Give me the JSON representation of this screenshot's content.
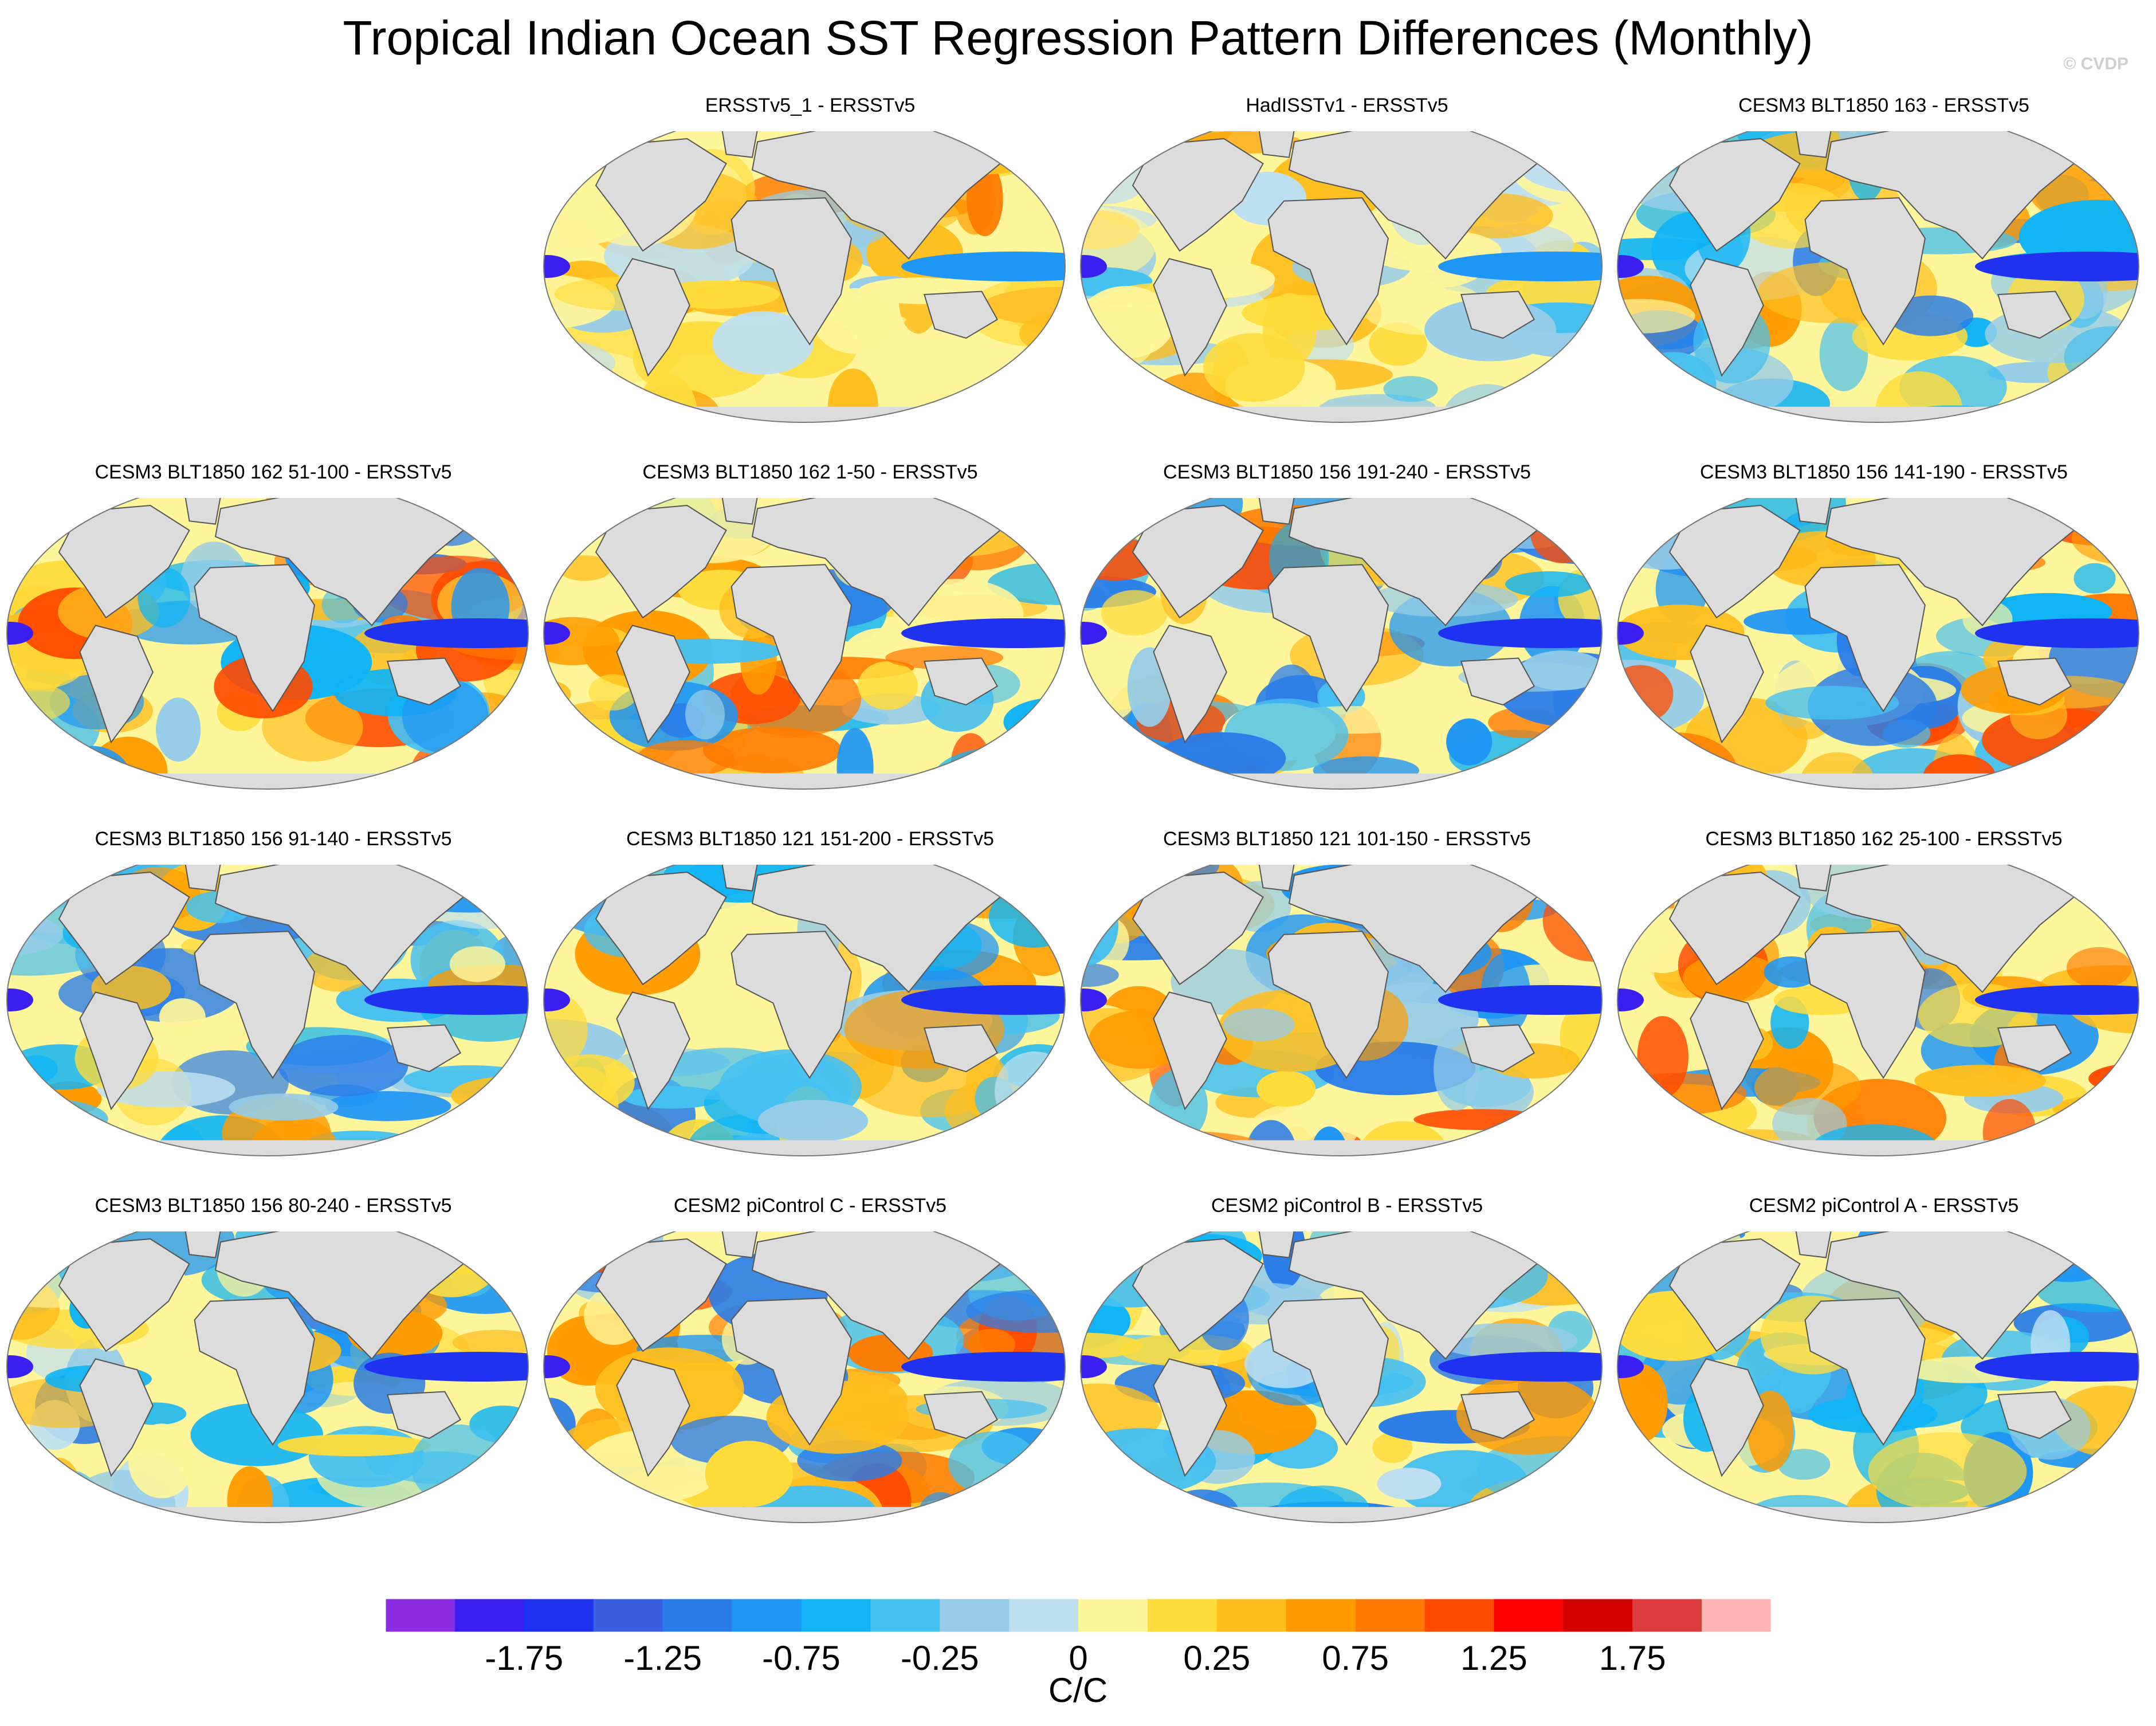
{
  "title": "Tropical Indian Ocean SST Regression Pattern Differences (Monthly)",
  "watermark": "© CVDP",
  "units": "C/C",
  "panels": [
    {
      "title": "ERSSTv5_1 - ERSSTv5",
      "row": 0,
      "col": 1,
      "tone": "warm"
    },
    {
      "title": "HadISSTv1 - ERSSTv5",
      "row": 0,
      "col": 2,
      "tone": "noisy"
    },
    {
      "title": "CESM3 BLT1850 163 - ERSSTv5",
      "row": 0,
      "col": 3,
      "tone": "cool"
    },
    {
      "title": "CESM3 BLT1850 162 51-100 - ERSSTv5",
      "row": 1,
      "col": 0,
      "tone": "mixed"
    },
    {
      "title": "CESM3 BLT1850 162 1-50 - ERSSTv5",
      "row": 1,
      "col": 1,
      "tone": "mixed"
    },
    {
      "title": "CESM3 BLT1850 156 191-240 - ERSSTv5",
      "row": 1,
      "col": 2,
      "tone": "mixed"
    },
    {
      "title": "CESM3 BLT1850 156 141-190 - ERSSTv5",
      "row": 1,
      "col": 3,
      "tone": "mixed"
    },
    {
      "title": "CESM3 BLT1850 156 91-140 - ERSSTv5",
      "row": 2,
      "col": 0,
      "tone": "cool"
    },
    {
      "title": "CESM3 BLT1850 121 151-200 - ERSSTv5",
      "row": 2,
      "col": 1,
      "tone": "cool"
    },
    {
      "title": "CESM3 BLT1850 121 101-150 - ERSSTv5",
      "row": 2,
      "col": 2,
      "tone": "mixed"
    },
    {
      "title": "CESM3 BLT1850 162 25-100 - ERSSTv5",
      "row": 2,
      "col": 3,
      "tone": "mixed"
    },
    {
      "title": "CESM3 BLT1850 156 80-240 - ERSSTv5",
      "row": 3,
      "col": 0,
      "tone": "cool"
    },
    {
      "title": "CESM2 piControl C - ERSSTv5",
      "row": 3,
      "col": 1,
      "tone": "mixed"
    },
    {
      "title": "CESM2 piControl B - ERSSTv5",
      "row": 3,
      "col": 2,
      "tone": "cool"
    },
    {
      "title": "CESM2 piControl A - ERSSTv5",
      "row": 3,
      "col": 3,
      "tone": "cool"
    }
  ],
  "colorbar": {
    "colors": [
      "#8b2be2",
      "#3b1ef0",
      "#1e32f0",
      "#3a5fe0",
      "#2a7de8",
      "#1e96f5",
      "#10b4f5",
      "#46c0f0",
      "#96cce8",
      "#bedff0",
      "#fff59a",
      "#ffdc3c",
      "#ffbe1e",
      "#ff9b00",
      "#ff7a00",
      "#ff4b00",
      "#ff0000",
      "#d20000",
      "#dc3c3c",
      "#ffb4b4"
    ],
    "tick_labels": [
      "-1.75",
      "-1.25",
      "-0.75",
      "-0.25",
      "0",
      "0.25",
      "0.75",
      "1.25",
      "1.75"
    ],
    "boundaries": [
      -2.0,
      -1.75,
      -1.5,
      -1.25,
      -1.0,
      -0.75,
      -0.5,
      -0.25,
      -0.1,
      0,
      0.1,
      0.25,
      0.5,
      0.75,
      1.0,
      1.25,
      1.5,
      1.75,
      2.0
    ]
  },
  "map_colors": {
    "land": "#dcdcdc",
    "coast": "#555555",
    "border": "#777777"
  }
}
